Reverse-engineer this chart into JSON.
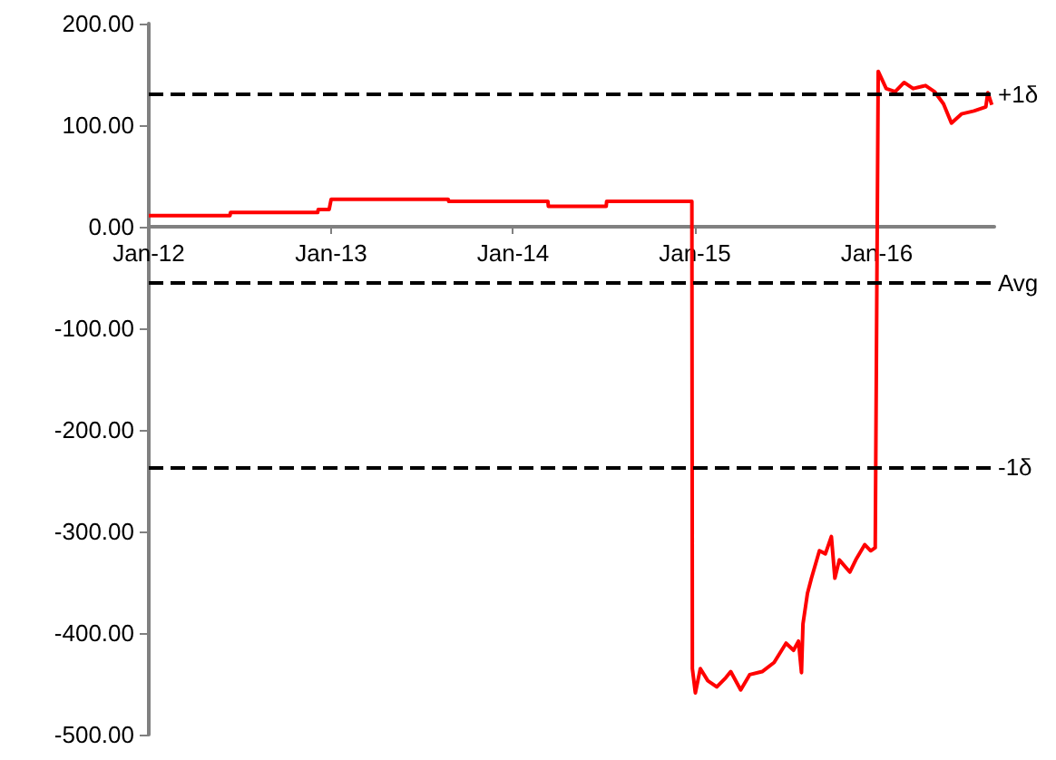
{
  "chart_data": {
    "type": "line",
    "marker": "none",
    "line_style": "solid",
    "xlim": [
      "2012-01-01",
      "2016-08-24"
    ],
    "xticks": [
      {
        "value": "2012-01-01",
        "label": "Jan-12"
      },
      {
        "value": "2013-01-01",
        "label": "Jan-13"
      },
      {
        "value": "2014-01-01",
        "label": "Jan-14"
      },
      {
        "value": "2015-01-01",
        "label": "Jan-15"
      },
      {
        "value": "2016-01-01",
        "label": "Jan-16"
      }
    ],
    "ylim": [
      -500,
      200
    ],
    "yticks": [
      {
        "value": -500,
        "label": "-500.00"
      },
      {
        "value": -400,
        "label": "-400.00"
      },
      {
        "value": -300,
        "label": "-300.00"
      },
      {
        "value": -200,
        "label": "-200.00"
      },
      {
        "value": -100,
        "label": "-100.00"
      },
      {
        "value": 0,
        "label": "0.00"
      },
      {
        "value": 100,
        "label": "100.00"
      },
      {
        "value": 200,
        "label": "200.00"
      }
    ],
    "ref_lines": [
      {
        "axis": "y",
        "value": 130,
        "label": "+1δ",
        "color": "#000000",
        "line_style": "dashed"
      },
      {
        "axis": "y",
        "value": -55,
        "label": "Avg",
        "color": "#000000",
        "line_style": "dashed"
      },
      {
        "axis": "y",
        "value": -237,
        "label": "-1δ",
        "color": "#000000",
        "line_style": "dashed"
      }
    ],
    "series": [
      {
        "color": "#ff0000",
        "x": [
          "2012-01-01",
          "2012-06-12",
          "2012-06-13",
          "2012-12-05",
          "2012-12-06",
          "2012-12-28",
          "2013-01-01",
          "2013-08-24",
          "2013-08-25",
          "2014-03-12",
          "2014-03-13",
          "2014-07-07",
          "2014-07-08",
          "2014-12-26",
          "2014-12-27",
          "2015-01-02",
          "2015-01-12",
          "2015-01-27",
          "2015-02-14",
          "2015-03-04",
          "2015-03-14",
          "2015-04-03",
          "2015-04-21",
          "2015-05-16",
          "2015-06-09",
          "2015-07-03",
          "2015-07-18",
          "2015-07-28",
          "2015-08-03",
          "2015-08-06",
          "2015-08-15",
          "2015-08-23",
          "2015-09-08",
          "2015-09-20",
          "2015-10-02",
          "2015-10-09",
          "2015-10-18",
          "2015-11-08",
          "2015-11-20",
          "2015-12-08",
          "2015-12-20",
          "2015-12-29",
          "2016-01-04",
          "2016-01-20",
          "2016-02-07",
          "2016-02-25",
          "2016-03-14",
          "2016-04-08",
          "2016-04-26",
          "2016-05-14",
          "2016-05-30",
          "2016-06-19",
          "2016-07-14",
          "2016-08-07",
          "2016-08-11",
          "2016-08-19"
        ],
        "values": [
          11,
          11,
          14,
          14,
          17,
          17,
          27,
          27,
          25,
          25,
          20,
          20,
          25,
          25,
          -435,
          -459,
          -435,
          -447,
          -453,
          -444,
          -438,
          -456,
          -441,
          -438,
          -429,
          -410,
          -417,
          -408,
          -439,
          -391,
          -361,
          -346,
          -319,
          -322,
          -305,
          -346,
          -328,
          -340,
          -328,
          -313,
          -319,
          -316,
          153,
          136,
          133,
          142,
          136,
          139,
          133,
          121,
          102,
          111,
          114,
          118,
          132,
          120
        ]
      }
    ]
  }
}
